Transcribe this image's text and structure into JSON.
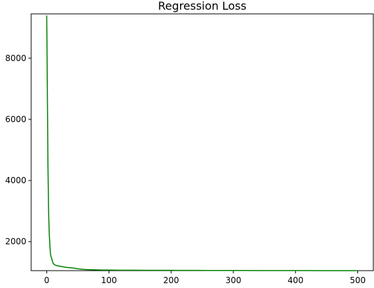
{
  "chart_data": {
    "type": "line",
    "title": "Regression Loss",
    "xlabel": "",
    "ylabel": "",
    "xlim": [
      -25,
      525
    ],
    "ylim": [
      1050,
      9450
    ],
    "xticks": [
      0,
      100,
      200,
      300,
      400,
      500
    ],
    "yticks": [
      2000,
      4000,
      6000,
      8000
    ],
    "xtick_labels": [
      "0",
      "100",
      "200",
      "300",
      "400",
      "500"
    ],
    "ytick_labels": [
      "2000",
      "4000",
      "6000",
      "8000"
    ],
    "grid": false,
    "legend": "none",
    "series": [
      {
        "color": "#008000",
        "x": [
          0,
          1,
          2,
          3,
          4,
          5,
          6,
          7,
          8,
          10,
          12,
          15,
          20,
          25,
          30,
          35,
          40,
          45,
          50,
          55,
          60,
          70,
          80,
          90,
          100,
          120,
          140,
          160,
          180,
          200,
          220,
          240,
          260,
          280,
          300,
          320,
          340,
          360,
          380,
          400,
          420,
          440,
          460,
          480,
          500
        ],
        "y": [
          9400,
          7000,
          4500,
          3000,
          2300,
          1900,
          1600,
          1500,
          1450,
          1300,
          1250,
          1220,
          1200,
          1180,
          1160,
          1150,
          1140,
          1130,
          1110,
          1100,
          1090,
          1080,
          1075,
          1070,
          1070,
          1065,
          1065,
          1060,
          1060,
          1060,
          1058,
          1058,
          1055,
          1055,
          1055,
          1055,
          1053,
          1053,
          1052,
          1052,
          1052,
          1050,
          1050,
          1050,
          1050
        ]
      }
    ]
  }
}
